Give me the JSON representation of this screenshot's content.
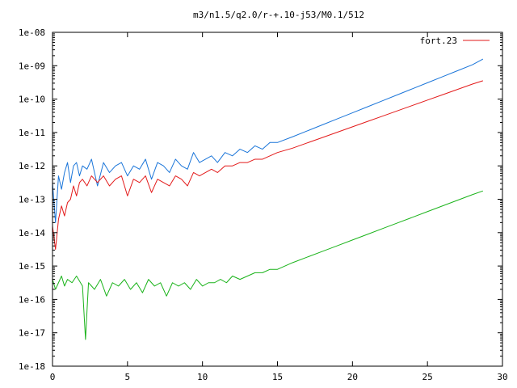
{
  "chart_data": {
    "type": "line",
    "title": "m3/n1.5/q2.0/r-+.10-j53/M0.1/512",
    "xlabel": "",
    "ylabel": "",
    "xlim": [
      0,
      30
    ],
    "ylim_log10": [
      -18,
      -8
    ],
    "y_scale": "log",
    "grid": false,
    "legend_position": "top-right",
    "x_ticks": [
      {
        "value": 0,
        "label": "0"
      },
      {
        "value": 5,
        "label": "5"
      },
      {
        "value": 10,
        "label": "10"
      },
      {
        "value": 15,
        "label": "15"
      },
      {
        "value": 20,
        "label": "20"
      },
      {
        "value": 25,
        "label": "25"
      },
      {
        "value": 30,
        "label": "30"
      }
    ],
    "y_ticks": [
      {
        "exp": -8,
        "label": "1e-08"
      },
      {
        "exp": -9,
        "label": "1e-09"
      },
      {
        "exp": -10,
        "label": "1e-10"
      },
      {
        "exp": -11,
        "label": "1e-11"
      },
      {
        "exp": -12,
        "label": "1e-12"
      },
      {
        "exp": -13,
        "label": "1e-13"
      },
      {
        "exp": -14,
        "label": "1e-14"
      },
      {
        "exp": -15,
        "label": "1e-15"
      },
      {
        "exp": -16,
        "label": "1e-16"
      },
      {
        "exp": -17,
        "label": "1e-17"
      },
      {
        "exp": -18,
        "label": "1e-18"
      }
    ],
    "series": [
      {
        "name": "",
        "color": "#1a75d9",
        "x": [
          0,
          0.2,
          0.4,
          0.6,
          0.8,
          1.0,
          1.2,
          1.4,
          1.6,
          1.8,
          2.0,
          2.3,
          2.6,
          3.0,
          3.4,
          3.8,
          4.2,
          4.6,
          5.0,
          5.4,
          5.8,
          6.2,
          6.6,
          7.0,
          7.4,
          7.8,
          8.2,
          8.6,
          9.0,
          9.4,
          9.8,
          10.2,
          10.6,
          11.0,
          11.5,
          12.0,
          12.5,
          13.0,
          13.5,
          14.0,
          14.5,
          15.0,
          16,
          17,
          18,
          19,
          20,
          21,
          22,
          23,
          24,
          25,
          26,
          27,
          28,
          28.7
        ],
        "log10y": [
          -12.5,
          -13.7,
          -12.3,
          -12.7,
          -12.2,
          -11.9,
          -12.5,
          -12.0,
          -11.9,
          -12.3,
          -12.0,
          -12.1,
          -11.8,
          -12.6,
          -11.9,
          -12.2,
          -12.0,
          -11.9,
          -12.3,
          -12.0,
          -12.1,
          -11.8,
          -12.4,
          -11.9,
          -12.0,
          -12.2,
          -11.8,
          -12.0,
          -12.1,
          -11.6,
          -11.9,
          -11.8,
          -11.7,
          -11.9,
          -11.6,
          -11.7,
          -11.5,
          -11.6,
          -11.4,
          -11.5,
          -11.3,
          -11.3,
          -11.13,
          -10.95,
          -10.77,
          -10.59,
          -10.41,
          -10.23,
          -10.05,
          -9.87,
          -9.69,
          -9.51,
          -9.33,
          -9.15,
          -8.97,
          -8.8
        ]
      },
      {
        "name": "fort.23",
        "color": "#e31a1a",
        "x": [
          0,
          0.2,
          0.4,
          0.6,
          0.8,
          1.0,
          1.2,
          1.4,
          1.6,
          1.8,
          2.0,
          2.3,
          2.6,
          3.0,
          3.4,
          3.8,
          4.2,
          4.6,
          5.0,
          5.4,
          5.8,
          6.2,
          6.6,
          7.0,
          7.4,
          7.8,
          8.2,
          8.6,
          9.0,
          9.4,
          9.8,
          10.2,
          10.6,
          11.0,
          11.5,
          12.0,
          12.5,
          13.0,
          13.5,
          14.0,
          14.5,
          15.0,
          16,
          17,
          18,
          19,
          20,
          21,
          22,
          23,
          24,
          25,
          26,
          27,
          28,
          28.7
        ],
        "log10y": [
          -13.8,
          -14.5,
          -13.6,
          -13.2,
          -13.5,
          -13.1,
          -13.0,
          -12.6,
          -12.9,
          -12.5,
          -12.4,
          -12.6,
          -12.3,
          -12.5,
          -12.3,
          -12.6,
          -12.4,
          -12.3,
          -12.9,
          -12.4,
          -12.5,
          -12.3,
          -12.8,
          -12.4,
          -12.5,
          -12.6,
          -12.3,
          -12.4,
          -12.6,
          -12.2,
          -12.3,
          -12.2,
          -12.1,
          -12.2,
          -12.0,
          -12.0,
          -11.9,
          -11.9,
          -11.8,
          -11.8,
          -11.7,
          -11.6,
          -11.47,
          -11.31,
          -11.15,
          -10.99,
          -10.83,
          -10.67,
          -10.51,
          -10.35,
          -10.19,
          -10.03,
          -9.87,
          -9.71,
          -9.55,
          -9.45
        ]
      },
      {
        "name": "",
        "color": "#1ab31a",
        "x": [
          0,
          0.2,
          0.4,
          0.6,
          0.8,
          1.0,
          1.3,
          1.6,
          2.0,
          2.2,
          2.4,
          2.8,
          3.2,
          3.6,
          4.0,
          4.4,
          4.8,
          5.2,
          5.6,
          6.0,
          6.4,
          6.8,
          7.2,
          7.6,
          8.0,
          8.4,
          8.8,
          9.2,
          9.6,
          10.0,
          10.4,
          10.8,
          11.2,
          11.6,
          12.0,
          12.5,
          13.0,
          13.5,
          14.0,
          14.5,
          15.0,
          15.5,
          16,
          17,
          18,
          19,
          20,
          21,
          22,
          23,
          24,
          25,
          26,
          27,
          28,
          28.7
        ],
        "log10y": [
          -15.4,
          -15.7,
          -15.5,
          -15.3,
          -15.6,
          -15.4,
          -15.5,
          -15.3,
          -15.6,
          -17.2,
          -15.5,
          -15.7,
          -15.4,
          -15.9,
          -15.5,
          -15.6,
          -15.4,
          -15.7,
          -15.5,
          -15.8,
          -15.4,
          -15.6,
          -15.5,
          -15.9,
          -15.5,
          -15.6,
          -15.5,
          -15.7,
          -15.4,
          -15.6,
          -15.5,
          -15.5,
          -15.4,
          -15.5,
          -15.3,
          -15.4,
          -15.3,
          -15.2,
          -15.2,
          -15.1,
          -15.1,
          -15.0,
          -14.9,
          -14.73,
          -14.56,
          -14.39,
          -14.22,
          -14.05,
          -13.88,
          -13.71,
          -13.54,
          -13.37,
          -13.2,
          -13.03,
          -12.86,
          -12.75
        ]
      }
    ]
  }
}
